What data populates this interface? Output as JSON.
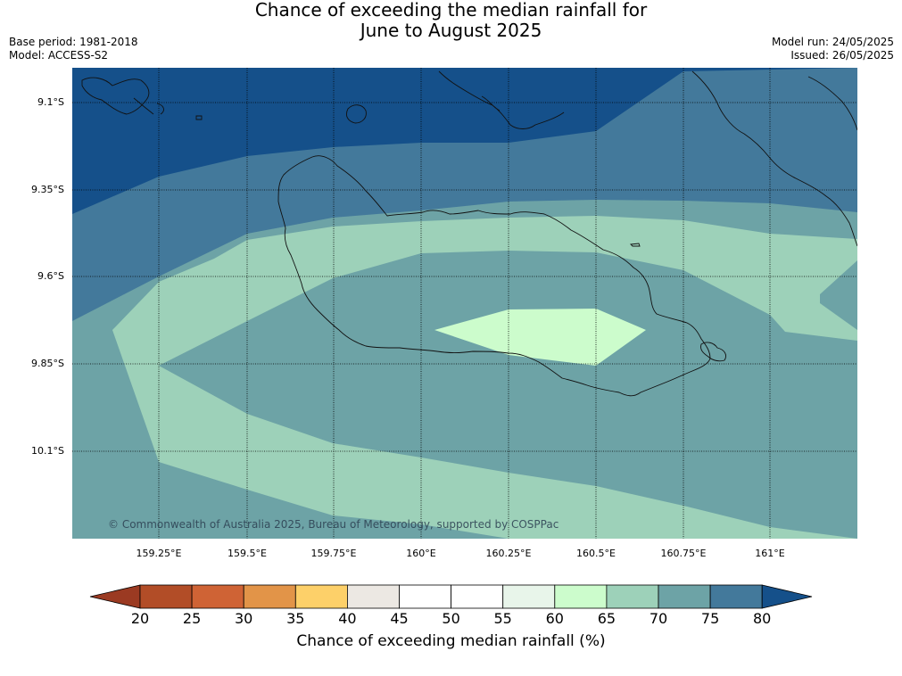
{
  "title": {
    "line1": "Chance of exceeding the median rainfall for",
    "line2": "June to August 2025"
  },
  "meta": {
    "base_period": "Base period: 1981-2018",
    "model": "Model: ACCESS-S2",
    "model_run": "Model run: 24/05/2025",
    "issued": "Issued: 26/05/2025"
  },
  "map": {
    "region": "Guadalcanal, Solomon Islands",
    "latitude_labels": [
      "9.1°S",
      "9.35°S",
      "9.6°S",
      "9.85°S",
      "10.1°S"
    ],
    "longitude_labels": [
      "159.25°E",
      "159.5°E",
      "159.75°E",
      "160°E",
      "160.25°E",
      "160.5°E",
      "160.75°E",
      "161°E"
    ],
    "copyright": "© Commonwealth of Australia 2025, Bureau of Meteorology, supported by COSPPac",
    "contour_fill_colors": {
      "65_70": "#9dd1b9",
      "60_65": "#ccfccc",
      "70_75": "#6da3a6",
      "75_80": "#43799b",
      "80_plus": "#15508a"
    }
  },
  "colorbar": {
    "ticks": [
      "20",
      "25",
      "30",
      "35",
      "40",
      "45",
      "50",
      "55",
      "60",
      "65",
      "70",
      "75",
      "80"
    ],
    "segments": [
      {
        "range": "20-25",
        "color": "#b24d27"
      },
      {
        "range": "25-30",
        "color": "#cf6335"
      },
      {
        "range": "30-35",
        "color": "#e29448"
      },
      {
        "range": "35-40",
        "color": "#fdd069"
      },
      {
        "range": "40-45",
        "color": "#ece8e3"
      },
      {
        "range": "45-50",
        "color": "#ffffff"
      },
      {
        "range": "50-55",
        "color": "#ffffff"
      },
      {
        "range": "55-60",
        "color": "#e8f5ea"
      },
      {
        "range": "60-65",
        "color": "#ccfccc"
      },
      {
        "range": "65-70",
        "color": "#9dd1b9"
      },
      {
        "range": "70-75",
        "color": "#6da3a6"
      },
      {
        "range": "75-80",
        "color": "#43799b"
      }
    ],
    "under_color": "#9b3a22",
    "over_color": "#15508a",
    "label": "Chance of exceeding median rainfall (%)"
  }
}
